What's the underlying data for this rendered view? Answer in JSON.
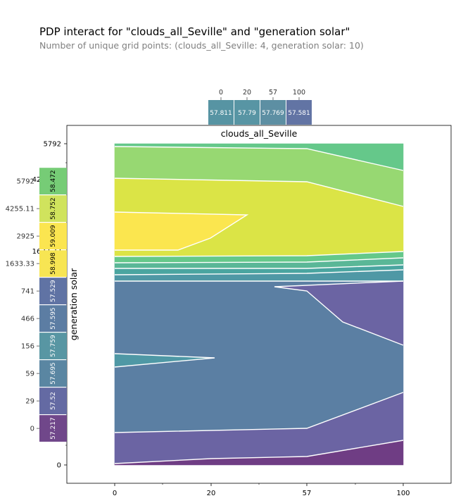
{
  "chart_data": {
    "type": "heatmap",
    "subtype": "pdp-interact-contour",
    "title": "PDP interact for \"clouds_all_Seville\" and \"generation solar\"",
    "subtitle": "Number of unique grid points: (clouds_all_Seville: 4, generation solar: 10)",
    "xlabel": "clouds_all_Seville",
    "ylabel": "generation solar",
    "x_grid": [
      0,
      20,
      57,
      100
    ],
    "x_grid_labels": [
      "0",
      "20",
      "57",
      "100"
    ],
    "y_grid": [
      0,
      29,
      59,
      156,
      466,
      741,
      1633.33,
      2925,
      4255.11,
      5792
    ],
    "y_grid_labels": [
      "0",
      "29",
      "59",
      "156",
      "466",
      "741",
      "1633.33",
      "2925",
      "4255.11",
      "5792"
    ],
    "x_marginal": {
      "categories": [
        "0",
        "20",
        "57",
        "100"
      ],
      "values": [
        57.811,
        57.79,
        57.769,
        57.581
      ],
      "labels": [
        "57.811",
        "57.79",
        "57.769",
        "57.581"
      ],
      "colors": [
        "#5794a3",
        "#5895a4",
        "#5d8fa3",
        "#6274a4"
      ]
    },
    "y_marginal": {
      "categories": [
        "0",
        "29",
        "59",
        "156",
        "466",
        "741",
        "1633.33",
        "2925",
        "4255.11",
        "5792"
      ],
      "values": [
        57.217,
        57.52,
        57.695,
        57.759,
        57.595,
        57.529,
        58.998,
        59.009,
        58.752,
        58.472
      ],
      "labels": [
        "57.217",
        "57.52",
        "57.695",
        "57.759",
        "57.595",
        "57.529",
        "58.998",
        "59.009",
        "58.752",
        "58.472"
      ],
      "colors": [
        "#70478a",
        "#646aa3",
        "#5a86a2",
        "#5896a3",
        "#5c7da3",
        "#6073a4",
        "#f7e553",
        "#fbe550",
        "#d0e35d",
        "#76cc76"
      ]
    },
    "contour_levels": [
      57.2,
      57.4,
      57.6,
      57.8,
      58.0,
      58.2,
      58.4,
      58.6,
      58.8,
      59.0
    ],
    "contour_colors": [
      "#6f3d84",
      "#6b64a3",
      "#5b7fa3",
      "#4f98a5",
      "#4aa5a0",
      "#5ab797",
      "#65c88a",
      "#97d872",
      "#dbe446",
      "#fbe64f"
    ],
    "grid": false
  }
}
